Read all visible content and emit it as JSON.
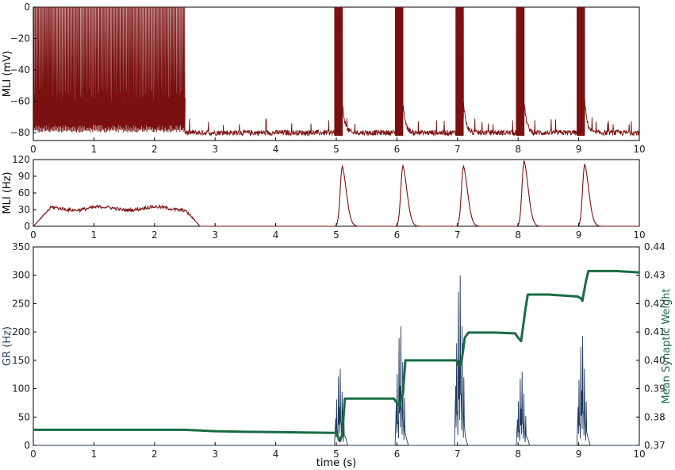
{
  "chart_data": [
    {
      "type": "line",
      "id": "panel_vm",
      "xlabel": "",
      "ylabel": "MLI (mV)",
      "xlim": [
        0,
        10
      ],
      "ylim": [
        -85,
        0
      ],
      "xticks": [
        "0",
        "1",
        "2",
        "3",
        "4",
        "5",
        "6",
        "7",
        "8",
        "9",
        "10"
      ],
      "yticks": [
        "0",
        "−20",
        "−40",
        "−60",
        "−80"
      ],
      "ytick_values": [
        0,
        -20,
        -40,
        -60,
        -80
      ],
      "color": "#7a1010",
      "series": [
        {
          "description_values": "tonic spiking 0–2.5 s (spikes from about -80 to 0 mV), resting near -80 mV afterwards, bursts of spikes at 5.0, 6.0, 7.0, 8.0, 9.0 s",
          "tonic_interval": [
            0,
            2.5
          ],
          "burst_starts": [
            4.97,
            5.97,
            6.97,
            7.97,
            8.97
          ],
          "burst_duration": 0.13,
          "rest": -80,
          "spike_peak": 0
        }
      ]
    },
    {
      "type": "line",
      "id": "panel_rate",
      "xlabel": "",
      "ylabel": "MLI (Hz)",
      "xlim": [
        0,
        10
      ],
      "ylim": [
        0,
        120
      ],
      "xticks": [
        "0",
        "1",
        "2",
        "3",
        "4",
        "5",
        "6",
        "7",
        "8",
        "9",
        "10"
      ],
      "yticks": [
        "0",
        "30",
        "60",
        "90",
        "120"
      ],
      "ytick_values": [
        0,
        30,
        60,
        90,
        120
      ],
      "color": "#7a1010",
      "series": [
        {
          "tonic_level": 32,
          "tonic_interval": [
            0,
            2.5
          ],
          "peaks": [
            {
              "x": 5.1,
              "y": 108
            },
            {
              "x": 6.1,
              "y": 109
            },
            {
              "x": 7.1,
              "y": 108
            },
            {
              "x": 8.1,
              "y": 118
            },
            {
              "x": 9.1,
              "y": 112
            }
          ]
        }
      ]
    },
    {
      "type": "line",
      "id": "panel_gr_weight",
      "xlabel": "time (s)",
      "ylabel": "GR (Hz)",
      "ylabel_right": "Mean Synaptic Weight",
      "xlim": [
        0,
        10
      ],
      "ylim": [
        0,
        350
      ],
      "ylim_right": [
        0.37,
        0.44
      ],
      "xticks": [
        "0",
        "1",
        "2",
        "3",
        "4",
        "5",
        "6",
        "7",
        "8",
        "9",
        "10"
      ],
      "yticks": [
        "0",
        "50",
        "100",
        "150",
        "200",
        "250",
        "300",
        "350"
      ],
      "ytick_values": [
        0,
        50,
        100,
        150,
        200,
        250,
        300,
        350
      ],
      "yticks_right": [
        "0.37",
        "0.38",
        "0.39",
        "0.40",
        "0.41",
        "0.42",
        "0.43",
        "0.44"
      ],
      "ytick_values_right": [
        0.37,
        0.38,
        0.39,
        0.4,
        0.41,
        0.42,
        0.43,
        0.44
      ],
      "series": [
        {
          "axis": "left",
          "color": "#1f3a5f",
          "bursts": [
            {
              "x": 5.05,
              "max": 135
            },
            {
              "x": 6.05,
              "max": 210
            },
            {
              "x": 7.03,
              "max": 300
            },
            {
              "x": 8.05,
              "max": 130
            },
            {
              "x": 9.05,
              "max": 193
            }
          ]
        },
        {
          "axis": "right",
          "color": "#1a6b45",
          "points": [
            [
              0,
              0.3755
            ],
            [
              2.5,
              0.3755
            ],
            [
              3.0,
              0.375
            ],
            [
              3.5,
              0.3748
            ],
            [
              4.0,
              0.3747
            ],
            [
              4.6,
              0.3745
            ],
            [
              4.95,
              0.3744
            ],
            [
              5.0,
              0.3745
            ],
            [
              5.03,
              0.373
            ],
            [
              5.06,
              0.3715
            ],
            [
              5.1,
              0.374
            ],
            [
              5.14,
              0.3865
            ],
            [
              5.5,
              0.3865
            ],
            [
              5.95,
              0.3865
            ],
            [
              6.0,
              0.385
            ],
            [
              6.04,
              0.384
            ],
            [
              6.1,
              0.388
            ],
            [
              6.14,
              0.4
            ],
            [
              6.6,
              0.4
            ],
            [
              6.98,
              0.4
            ],
            [
              7.02,
              0.398
            ],
            [
              7.06,
              0.3985
            ],
            [
              7.12,
              0.408
            ],
            [
              7.18,
              0.4098
            ],
            [
              7.6,
              0.4098
            ],
            [
              7.95,
              0.4095
            ],
            [
              8.0,
              0.408
            ],
            [
              8.05,
              0.4068
            ],
            [
              8.12,
              0.418
            ],
            [
              8.16,
              0.4232
            ],
            [
              8.5,
              0.4232
            ],
            [
              8.98,
              0.4225
            ],
            [
              9.03,
              0.422
            ],
            [
              9.06,
              0.421
            ],
            [
              9.12,
              0.428
            ],
            [
              9.16,
              0.4315
            ],
            [
              9.6,
              0.4315
            ],
            [
              10.0,
              0.431
            ]
          ]
        }
      ]
    }
  ]
}
